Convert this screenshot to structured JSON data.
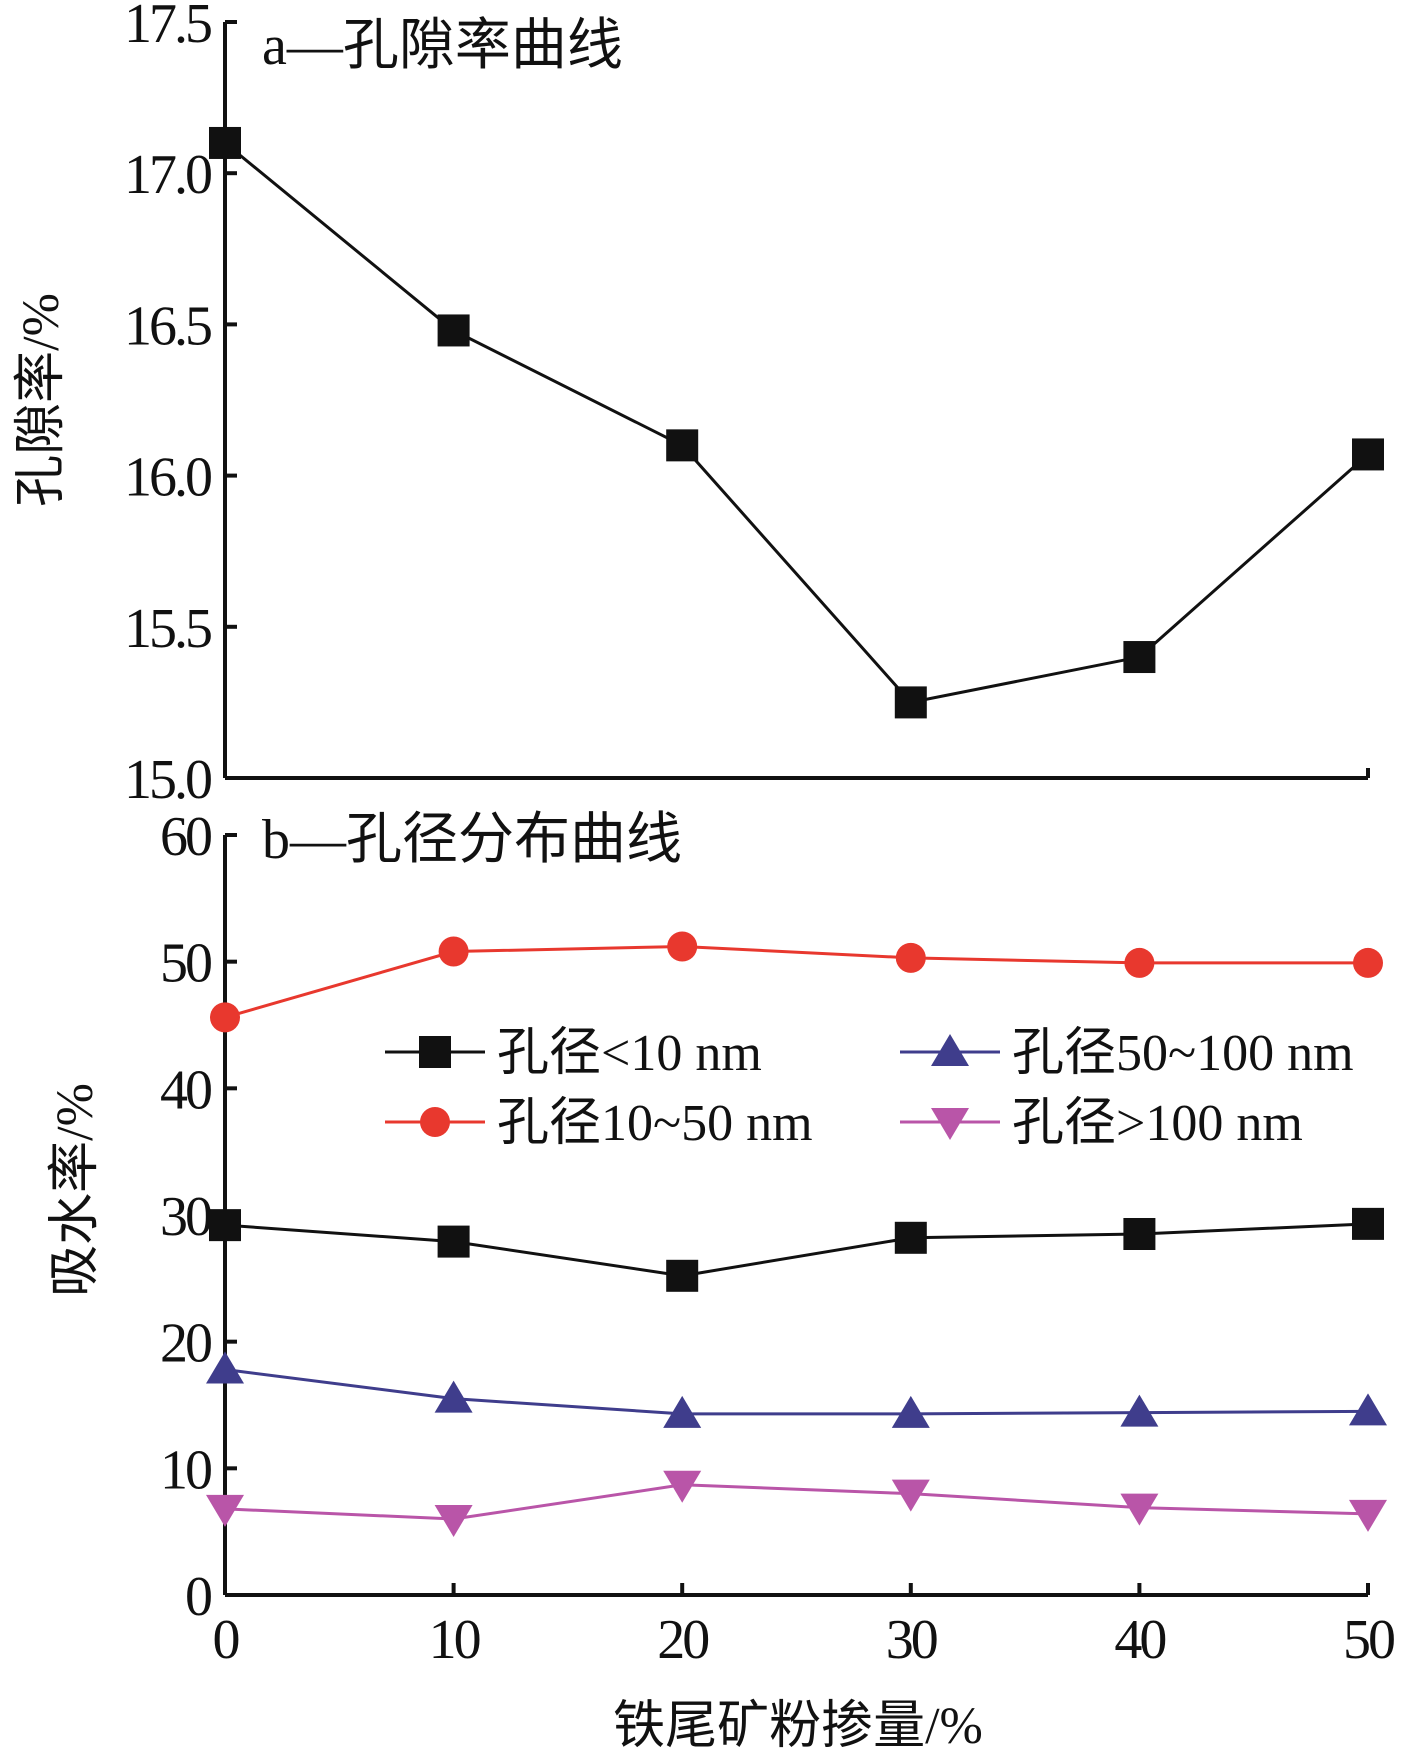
{
  "chart_data": [
    {
      "type": "line",
      "title": "a—孔隙率曲线",
      "ylabel": "孔隙率/%",
      "xlabel": "",
      "x": [
        0,
        10,
        20,
        30,
        40,
        50
      ],
      "ylim": [
        15.0,
        17.5
      ],
      "yticks": [
        "15.0",
        "15.5",
        "16.0",
        "16.5",
        "17.0",
        "17.5"
      ],
      "series": [
        {
          "values": [
            17.1,
            16.48,
            16.1,
            15.25,
            15.4,
            16.07
          ],
          "color": "#111111",
          "marker": "square"
        }
      ]
    },
    {
      "type": "line",
      "title": "b—孔径分布曲线",
      "ylabel": "吸水率/%",
      "xlabel": "铁尾矿粉掺量/%",
      "x": [
        0,
        10,
        20,
        30,
        40,
        50
      ],
      "xticks": [
        "0",
        "10",
        "20",
        "30",
        "40",
        "50"
      ],
      "ylim": [
        0,
        60
      ],
      "yticks": [
        "0",
        "10",
        "20",
        "30",
        "40",
        "50",
        "60"
      ],
      "legend_position": "center-right",
      "series": [
        {
          "name": "孔径<10 nm",
          "values": [
            29.2,
            27.9,
            25.2,
            28.2,
            28.5,
            29.3
          ],
          "color": "#111111",
          "marker": "square"
        },
        {
          "name": "孔径10~50 nm",
          "values": [
            45.6,
            50.8,
            51.2,
            50.3,
            49.9,
            49.9
          ],
          "color": "#e8382e",
          "marker": "circle"
        },
        {
          "name": "孔径50~100 nm",
          "values": [
            17.8,
            15.5,
            14.3,
            14.3,
            14.4,
            14.5
          ],
          "color": "#3f3d8c",
          "marker": "triangle-up"
        },
        {
          "name": "孔径>100 nm",
          "values": [
            6.8,
            6.0,
            8.7,
            8.0,
            6.9,
            6.4
          ],
          "color": "#b955a8",
          "marker": "triangle-down"
        }
      ]
    }
  ]
}
